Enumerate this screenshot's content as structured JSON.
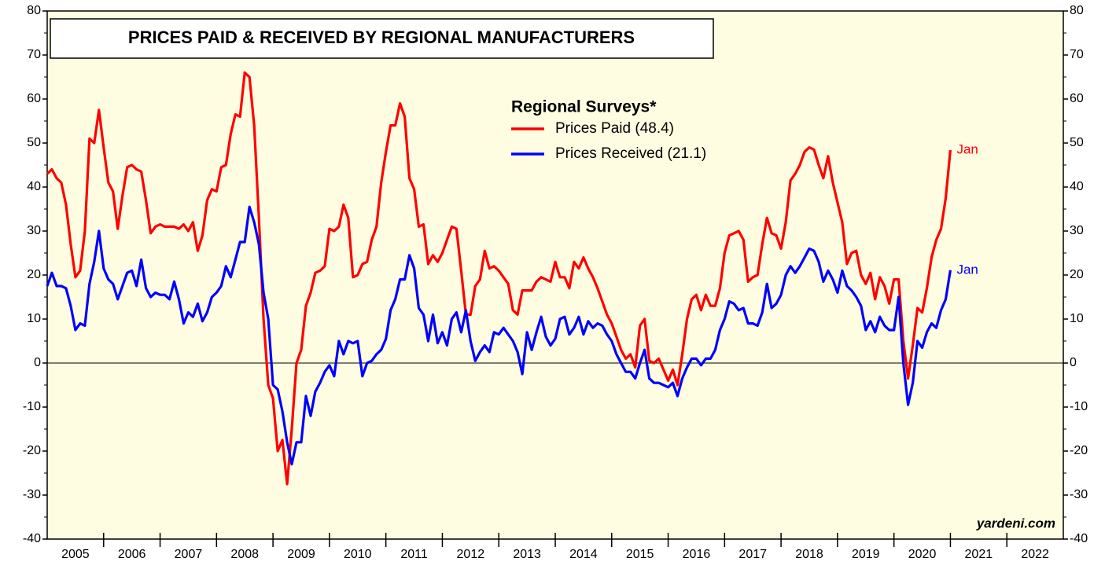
{
  "chart_data": {
    "type": "line",
    "title": "PRICES PAID & RECEIVED BY REGIONAL MANUFACTURERS",
    "legend_title": "Regional Surveys*",
    "watermark": "yardeni.com",
    "background": "#fffde1",
    "xlim": [
      "2005-01",
      "2023-01"
    ],
    "year_labels": [
      "2005",
      "2006",
      "2007",
      "2008",
      "2009",
      "2010",
      "2011",
      "2012",
      "2013",
      "2014",
      "2015",
      "2016",
      "2017",
      "2018",
      "2019",
      "2020",
      "2021",
      "2022"
    ],
    "ylim": [
      -40,
      80
    ],
    "yticks": [
      -40,
      -30,
      -20,
      -10,
      0,
      10,
      20,
      30,
      40,
      50,
      60,
      70,
      80
    ],
    "x": [
      "2005-01",
      "2005-02",
      "2005-03",
      "2005-04",
      "2005-05",
      "2005-06",
      "2005-07",
      "2005-08",
      "2005-09",
      "2005-10",
      "2005-11",
      "2005-12",
      "2006-01",
      "2006-02",
      "2006-03",
      "2006-04",
      "2006-05",
      "2006-06",
      "2006-07",
      "2006-08",
      "2006-09",
      "2006-10",
      "2006-11",
      "2006-12",
      "2007-01",
      "2007-02",
      "2007-03",
      "2007-04",
      "2007-05",
      "2007-06",
      "2007-07",
      "2007-08",
      "2007-09",
      "2007-10",
      "2007-11",
      "2007-12",
      "2008-01",
      "2008-02",
      "2008-03",
      "2008-04",
      "2008-05",
      "2008-06",
      "2008-07",
      "2008-08",
      "2008-09",
      "2008-10",
      "2008-11",
      "2008-12",
      "2009-01",
      "2009-02",
      "2009-03",
      "2009-04",
      "2009-05",
      "2009-06",
      "2009-07",
      "2009-08",
      "2009-09",
      "2009-10",
      "2009-11",
      "2009-12",
      "2010-01",
      "2010-02",
      "2010-03",
      "2010-04",
      "2010-05",
      "2010-06",
      "2010-07",
      "2010-08",
      "2010-09",
      "2010-10",
      "2010-11",
      "2010-12",
      "2011-01",
      "2011-02",
      "2011-03",
      "2011-04",
      "2011-05",
      "2011-06",
      "2011-07",
      "2011-08",
      "2011-09",
      "2011-10",
      "2011-11",
      "2011-12",
      "2012-01",
      "2012-02",
      "2012-03",
      "2012-04",
      "2012-05",
      "2012-06",
      "2012-07",
      "2012-08",
      "2012-09",
      "2012-10",
      "2012-11",
      "2012-12",
      "2013-01",
      "2013-02",
      "2013-03",
      "2013-04",
      "2013-05",
      "2013-06",
      "2013-07",
      "2013-08",
      "2013-09",
      "2013-10",
      "2013-11",
      "2013-12",
      "2014-01",
      "2014-02",
      "2014-03",
      "2014-04",
      "2014-05",
      "2014-06",
      "2014-07",
      "2014-08",
      "2014-09",
      "2014-10",
      "2014-11",
      "2014-12",
      "2015-01",
      "2015-02",
      "2015-03",
      "2015-04",
      "2015-05",
      "2015-06",
      "2015-07",
      "2015-08",
      "2015-09",
      "2015-10",
      "2015-11",
      "2015-12",
      "2016-01",
      "2016-02",
      "2016-03",
      "2016-04",
      "2016-05",
      "2016-06",
      "2016-07",
      "2016-08",
      "2016-09",
      "2016-10",
      "2016-11",
      "2016-12",
      "2017-01",
      "2017-02",
      "2017-03",
      "2017-04",
      "2017-05",
      "2017-06",
      "2017-07",
      "2017-08",
      "2017-09",
      "2017-10",
      "2017-11",
      "2017-12",
      "2018-01",
      "2018-02",
      "2018-03",
      "2018-04",
      "2018-05",
      "2018-06",
      "2018-07",
      "2018-08",
      "2018-09",
      "2018-10",
      "2018-11",
      "2018-12",
      "2019-01",
      "2019-02",
      "2019-03",
      "2019-04",
      "2019-05",
      "2019-06",
      "2019-07",
      "2019-08",
      "2019-09",
      "2019-10",
      "2019-11",
      "2019-12",
      "2020-01",
      "2020-02",
      "2020-03",
      "2020-04",
      "2020-05",
      "2020-06",
      "2020-07",
      "2020-08",
      "2020-09",
      "2020-10",
      "2020-11",
      "2020-12",
      "2021-01"
    ],
    "series": [
      {
        "name": "Prices Paid (48.4)",
        "color": "#ff0000",
        "end_label": "Jan",
        "values": [
          43,
          44,
          42,
          41,
          36,
          27,
          19.5,
          21,
          30,
          51,
          50,
          57.5,
          49,
          41,
          39,
          30.5,
          38,
          44.5,
          45,
          44,
          43.5,
          37,
          29.5,
          31,
          31.5,
          31,
          31,
          31,
          30.5,
          31.5,
          30,
          32,
          25.5,
          29,
          37,
          39.5,
          39,
          44.5,
          45,
          52,
          56.5,
          56,
          66,
          65,
          54,
          33,
          10,
          -5,
          -8,
          -20,
          -17.5,
          -27.5,
          -15,
          0,
          3,
          13,
          16,
          20.5,
          21,
          22,
          30.5,
          30,
          31,
          36,
          33,
          19.5,
          20,
          22.5,
          23,
          28,
          31,
          41,
          48,
          54,
          54,
          59,
          56,
          42,
          39.5,
          31,
          31.5,
          22.5,
          24.5,
          23,
          25,
          28,
          31,
          30.5,
          21,
          11,
          11,
          17.5,
          19,
          25.5,
          21.5,
          22,
          21,
          19.5,
          18,
          12,
          11,
          16.5,
          16.5,
          16.5,
          18.5,
          19.5,
          19,
          18.5,
          23,
          19.5,
          19.5,
          17,
          23,
          21.5,
          24,
          21.5,
          19.5,
          17,
          14,
          11,
          9,
          6,
          3,
          1,
          2,
          -1,
          8.5,
          10,
          0.5,
          0,
          1,
          -1.5,
          -4,
          -1.5,
          -5,
          2,
          10,
          14.5,
          15.5,
          12,
          15.5,
          13,
          13,
          17,
          25,
          29,
          29.5,
          30,
          28,
          18.5,
          19.5,
          20,
          27,
          33,
          29.5,
          29,
          26,
          32,
          41.5,
          43,
          45,
          48,
          49,
          48.5,
          45,
          42,
          47,
          41,
          36.5,
          32,
          22.5,
          25,
          25.5,
          20,
          18,
          20.5,
          14.5,
          19.5,
          17.5,
          13.5,
          19,
          19,
          5,
          -3.5,
          4,
          12.5,
          11.5,
          17,
          24,
          28,
          30.5,
          37.5,
          48.4
        ]
      },
      {
        "name": "Prices Received (21.1)",
        "color": "#0000ff",
        "end_label": "Jan",
        "values": [
          17.5,
          20.5,
          17.5,
          17.5,
          17,
          13,
          7.5,
          9,
          8.5,
          18,
          23,
          30,
          21.5,
          19,
          18,
          14.5,
          17.5,
          20.5,
          21,
          17.5,
          23.5,
          17,
          15,
          16,
          15.5,
          15.5,
          14.5,
          18.5,
          14.5,
          9,
          11.5,
          10.5,
          13.5,
          9.5,
          11.5,
          15,
          16,
          17.5,
          22,
          19.5,
          23.5,
          27.5,
          27.5,
          35.5,
          32,
          27,
          16,
          10,
          -5,
          -6,
          -11,
          -18,
          -23,
          -18,
          -18,
          -7.5,
          -12,
          -6.5,
          -4.5,
          -2,
          -0.5,
          -3,
          5,
          2,
          5,
          4.5,
          5,
          -3,
          0,
          0.5,
          2,
          3,
          5.5,
          12,
          14.5,
          19,
          19,
          24.5,
          21.5,
          12.5,
          11,
          5,
          11,
          4.5,
          7,
          4,
          10,
          11.5,
          7,
          12,
          5,
          0.5,
          2.5,
          4,
          2.5,
          7,
          6.5,
          8,
          6.5,
          5,
          2.5,
          -2.5,
          7,
          3,
          7,
          10.5,
          6,
          4,
          5.5,
          10,
          10.5,
          6.5,
          8,
          10.5,
          6.5,
          9.5,
          8,
          9,
          8.5,
          6.5,
          5,
          2,
          0,
          -2,
          -2,
          -3.5,
          0,
          3,
          -3.5,
          -4.5,
          -4.5,
          -5,
          -5.5,
          -4.5,
          -7.5,
          -3.5,
          -1,
          1,
          1,
          -0.5,
          1,
          1,
          3,
          7.5,
          10,
          14,
          13.5,
          12,
          12.5,
          9,
          9,
          8.5,
          11.5,
          18,
          12.5,
          13.5,
          15.5,
          20,
          22,
          20.5,
          22,
          24,
          26,
          25.5,
          23,
          18.5,
          21,
          19,
          16,
          21,
          17.5,
          16.5,
          15,
          13,
          7.5,
          9.5,
          7,
          10.5,
          8.5,
          7.5,
          7.5,
          15,
          0,
          -9.5,
          -4.5,
          5,
          3.5,
          7,
          9,
          8,
          12,
          14.5,
          21.1
        ]
      }
    ]
  }
}
